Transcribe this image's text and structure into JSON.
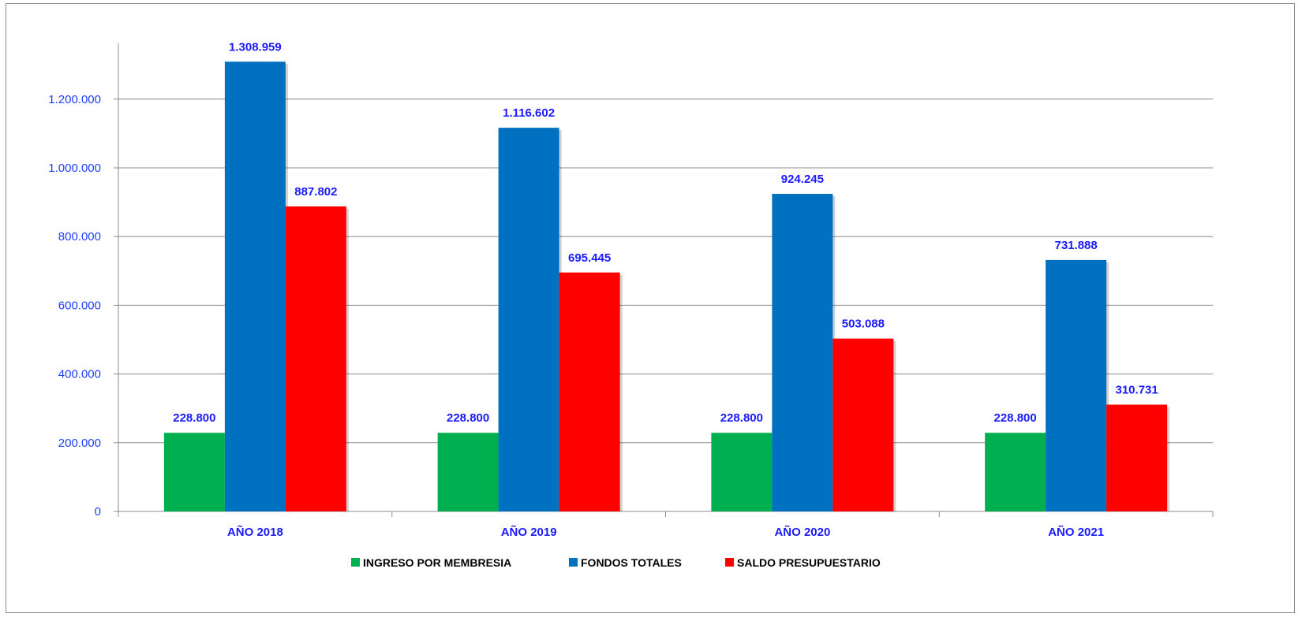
{
  "chart_data": {
    "type": "bar",
    "categories": [
      "AÑO 2018",
      "AÑO 2019",
      "AÑO 2020",
      "AÑO 2021"
    ],
    "series": [
      {
        "name": "INGRESO POR MEMBRESIA",
        "color": "#00b050",
        "values": [
          228800,
          228800,
          228800,
          228800
        ],
        "labels": [
          "228.800",
          "228.800",
          "228.800",
          "228.800"
        ]
      },
      {
        "name": "FONDOS TOTALES",
        "color": "#0070c0",
        "values": [
          1308959,
          1116602,
          924245,
          731888
        ],
        "labels": [
          "1.308.959",
          "1.116.602",
          "924.245",
          "731.888"
        ]
      },
      {
        "name": "SALDO PRESUPUESTARIO",
        "color": "#ff0000",
        "values": [
          887802,
          695445,
          503088,
          310731
        ],
        "labels": [
          "887.802",
          "695.445",
          "503.088",
          "310.731"
        ]
      }
    ],
    "yticks": [
      0,
      200000,
      400000,
      600000,
      800000,
      1000000,
      1200000
    ],
    "ytick_labels": [
      "0",
      "200.000",
      "400.000",
      "600.000",
      "800.000",
      "1.000.000",
      "1.200.000"
    ],
    "ylim": [
      0,
      1400000
    ],
    "grid": true,
    "legend_position": "bottom",
    "title": "",
    "xlabel": "",
    "ylabel": ""
  }
}
